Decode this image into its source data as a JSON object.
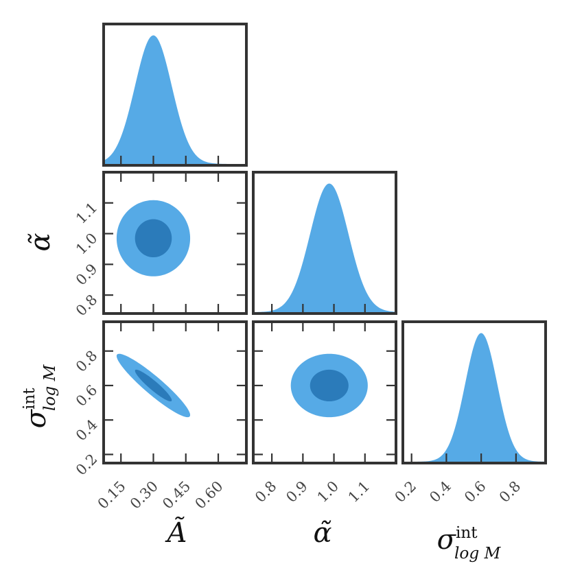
{
  "chart_data": {
    "type": "corner",
    "parameters": [
      {
        "key": "A",
        "label": "Ã",
        "ticks": [
          0.15,
          0.3,
          0.45,
          0.6
        ],
        "tick_labels": [
          "0.15",
          "0.30",
          "0.45",
          "0.60"
        ],
        "range": [
          0.07,
          0.73
        ],
        "mean": 0.3,
        "sd": 0.085
      },
      {
        "key": "alpha",
        "label": "α̃",
        "ticks": [
          0.8,
          0.9,
          1.0,
          1.1
        ],
        "tick_labels": [
          "0.8",
          "0.9",
          "1.0",
          "1.1"
        ],
        "range": [
          0.74,
          1.2
        ],
        "mean": 0.985,
        "sd": 0.062
      },
      {
        "key": "sigma",
        "label_main": "σ",
        "label_sup": "int",
        "label_sub": "log M",
        "ticks": [
          0.2,
          0.4,
          0.6,
          0.8
        ],
        "tick_labels": [
          "0.2",
          "0.4",
          "0.6",
          "0.8"
        ],
        "range": [
          0.15,
          0.97
        ],
        "mean": 0.6,
        "sd": 0.092
      }
    ],
    "pairs": [
      {
        "x": "A",
        "y": "alpha",
        "rho": 0.0
      },
      {
        "x": "A",
        "y": "sigma",
        "rho": -0.93
      },
      {
        "x": "alpha",
        "y": "sigma",
        "rho": 0.0
      }
    ],
    "contour_levels_sigma": [
      1,
      2
    ],
    "colors": {
      "marginal_fill": "#56aae6",
      "contour_outer": "#56aae6",
      "contour_inner": "#2b7bba",
      "frame": "#333333"
    }
  }
}
